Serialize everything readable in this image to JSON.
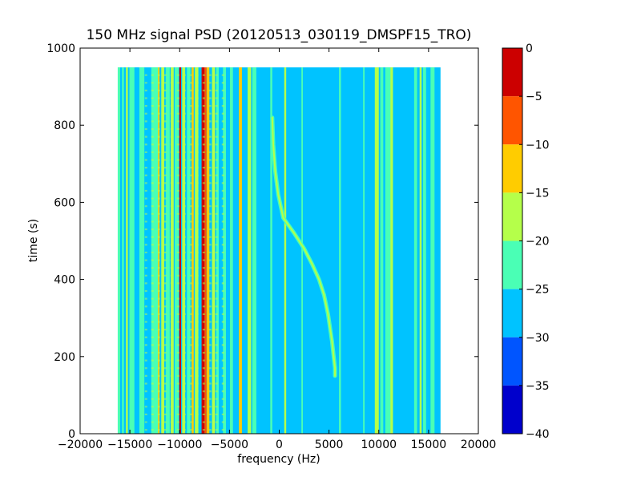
{
  "chart_data": {
    "type": "heatmap",
    "title": "150 MHz signal PSD (20120513_030119_DMSPF15_TRO)",
    "xlabel": "frequency (Hz)",
    "ylabel": "time (s)",
    "xlim": [
      -20000,
      20000
    ],
    "ylim": [
      0,
      1000
    ],
    "xticks": [
      -20000,
      -15000,
      -10000,
      -5000,
      0,
      5000,
      10000,
      15000,
      20000
    ],
    "yticks": [
      0,
      200,
      400,
      600,
      800,
      1000
    ],
    "data_extent": {
      "x": [
        -16200,
        16200
      ],
      "y": [
        0,
        950
      ]
    },
    "background_level": -27.5,
    "bands": [
      {
        "x": -16100,
        "w": 250,
        "level": -22.5
      },
      {
        "x": -15700,
        "w": 200,
        "level": -22.5
      },
      {
        "x": -15300,
        "w": 200,
        "level": -17.5
      },
      {
        "x": -14800,
        "w": 500,
        "level": -22.5
      },
      {
        "x": -14300,
        "w": 300,
        "level": -27.5
      },
      {
        "x": -13800,
        "w": 500,
        "level": -22.5
      },
      {
        "x": -12500,
        "w": 700,
        "level": -22.5
      },
      {
        "x": -12100,
        "w": 150,
        "level": -12.5
      },
      {
        "x": -11700,
        "w": 300,
        "level": -17.5
      },
      {
        "x": -11200,
        "w": 400,
        "level": -22.5
      },
      {
        "x": -10750,
        "w": 300,
        "level": -17.5
      },
      {
        "x": -10300,
        "w": 400,
        "level": -22.5
      },
      {
        "x": -9950,
        "w": 180,
        "level": -2.5
      },
      {
        "x": -9600,
        "w": 300,
        "level": -17.5
      },
      {
        "x": -9100,
        "w": 350,
        "level": -22.5
      },
      {
        "x": -8700,
        "w": 220,
        "level": -12.5
      },
      {
        "x": -8300,
        "w": 350,
        "level": -17.5
      },
      {
        "x": -7650,
        "w": 300,
        "level": -2.5
      },
      {
        "x": -7400,
        "w": 200,
        "level": -7.5
      },
      {
        "x": -7150,
        "w": 250,
        "level": -12.5
      },
      {
        "x": -6600,
        "w": 300,
        "level": -17.5
      },
      {
        "x": -6200,
        "w": 250,
        "level": -22.5
      },
      {
        "x": -5500,
        "w": 300,
        "level": -22.5
      },
      {
        "x": -4800,
        "w": 300,
        "level": -22.5
      },
      {
        "x": -3900,
        "w": 300,
        "level": -12.5
      },
      {
        "x": -3000,
        "w": 350,
        "level": -17.5
      },
      {
        "x": -2500,
        "w": 400,
        "level": -22.5
      },
      {
        "x": -800,
        "w": 200,
        "level": -22.5
      },
      {
        "x": 600,
        "w": 200,
        "level": -17.5
      },
      {
        "x": 2300,
        "w": 150,
        "level": -22.5
      },
      {
        "x": 6100,
        "w": 200,
        "level": -22.5
      },
      {
        "x": 8500,
        "w": 150,
        "level": -22.5
      },
      {
        "x": 9800,
        "w": 400,
        "level": -17.5
      },
      {
        "x": 10300,
        "w": 300,
        "level": -22.5
      },
      {
        "x": 11000,
        "w": 700,
        "level": -22.5
      },
      {
        "x": 11300,
        "w": 250,
        "level": -17.5
      },
      {
        "x": 13700,
        "w": 300,
        "level": -22.5
      },
      {
        "x": 14200,
        "w": 200,
        "level": -17.5
      },
      {
        "x": 14600,
        "w": 300,
        "level": -22.5
      },
      {
        "x": 15400,
        "w": 400,
        "level": -22.5
      }
    ],
    "ripple_zone": {
      "x": [
        -13500,
        -5500
      ],
      "period": 20,
      "level": -17.5
    },
    "doppler_trace": {
      "level": -17.5,
      "x": [
        -700,
        -600,
        -400,
        -100,
        400,
        1500,
        2500,
        3300,
        4000,
        4500,
        4900,
        5300,
        5600,
        5600
      ],
      "y": [
        820,
        750,
        680,
        620,
        560,
        520,
        480,
        440,
        400,
        360,
        310,
        240,
        170,
        150
      ]
    },
    "colorbar": {
      "levels": [
        0,
        -5,
        -10,
        -15,
        -20,
        -25,
        -30,
        -35,
        -40
      ],
      "colors": [
        "#cc0000",
        "#ff5500",
        "#ffcc00",
        "#b5ff4a",
        "#4affb5",
        "#00c3ff",
        "#0055ff",
        "#0000cc"
      ]
    }
  }
}
